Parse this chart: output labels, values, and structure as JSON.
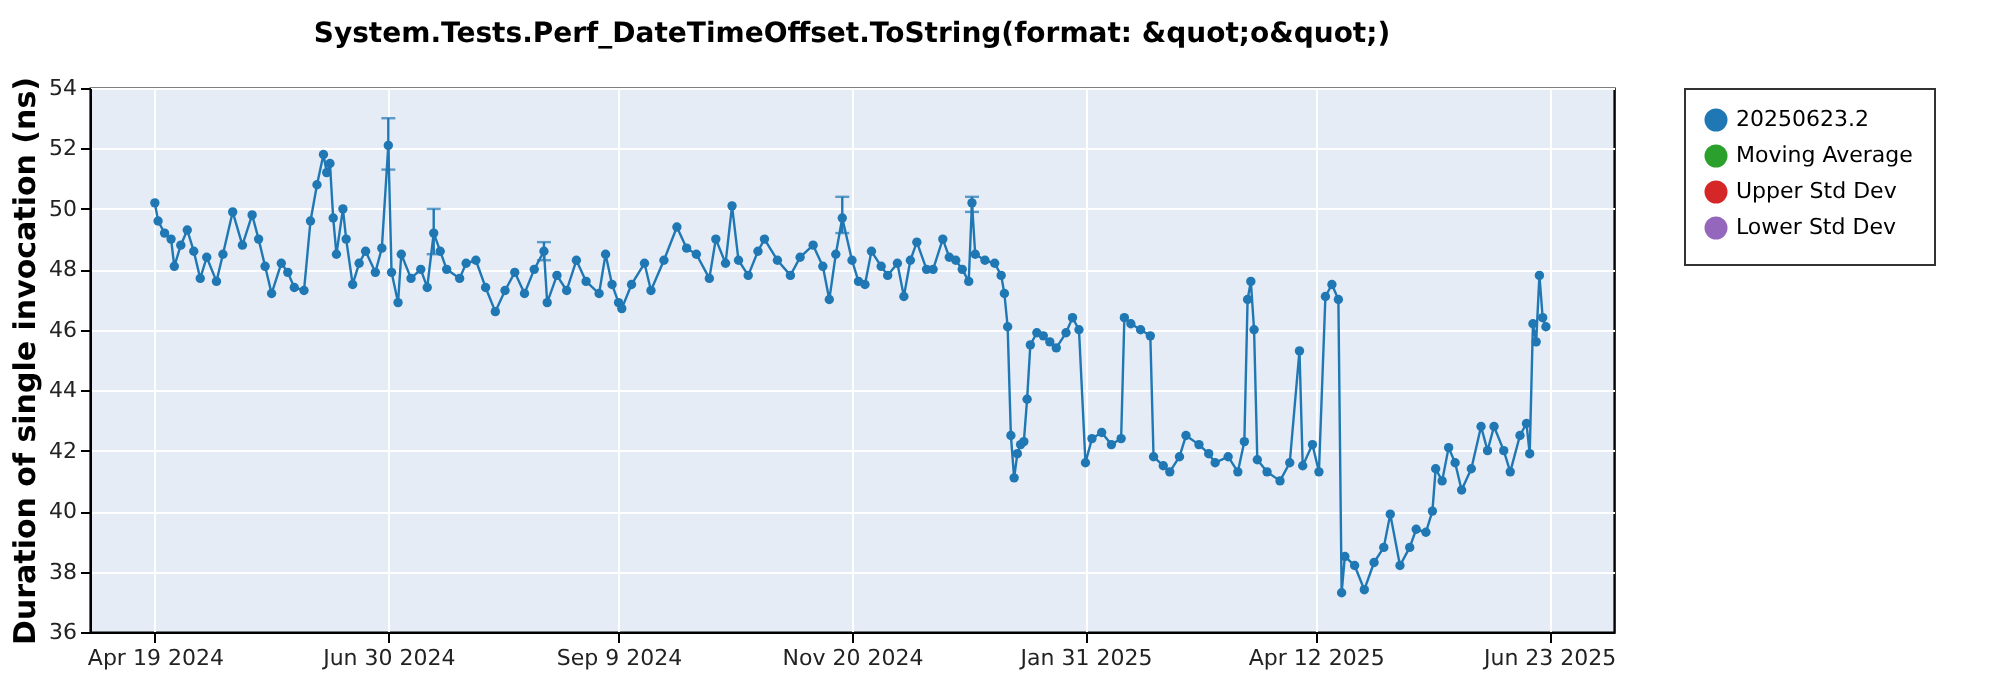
{
  "chart_data": {
    "type": "line",
    "title": "System.Tests.Perf_DateTimeOffset.ToString(format: &quot;o&quot;)",
    "ylabel": "Duration of single invocation (ns)",
    "xlim": [
      "2024-03-30",
      "2025-07-13"
    ],
    "xticks": [
      {
        "value": "2024-04-19",
        "label": "Apr 19 2024"
      },
      {
        "value": "2024-06-30",
        "label": "Jun 30 2024"
      },
      {
        "value": "2024-09-09",
        "label": "Sep 9 2024"
      },
      {
        "value": "2024-11-20",
        "label": "Nov 20 2024"
      },
      {
        "value": "2025-01-31",
        "label": "Jan 31 2025"
      },
      {
        "value": "2025-04-12",
        "label": "Apr 12 2025"
      },
      {
        "value": "2025-06-23",
        "label": "Jun 23 2025"
      }
    ],
    "ylim": [
      36,
      54
    ],
    "yticks": [
      36,
      38,
      40,
      42,
      44,
      46,
      48,
      50,
      52,
      54
    ],
    "grid": true,
    "legend": "right",
    "marker": "circle",
    "line_style": "solid",
    "x": [
      "2024-04-19",
      "2024-04-20",
      "2024-04-22",
      "2024-04-24",
      "2024-04-25",
      "2024-04-27",
      "2024-04-29",
      "2024-05-01",
      "2024-05-03",
      "2024-05-05",
      "2024-05-08",
      "2024-05-10",
      "2024-05-13",
      "2024-05-16",
      "2024-05-19",
      "2024-05-21",
      "2024-05-23",
      "2024-05-25",
      "2024-05-28",
      "2024-05-30",
      "2024-06-01",
      "2024-06-04",
      "2024-06-06",
      "2024-06-08",
      "2024-06-10",
      "2024-06-11",
      "2024-06-12",
      "2024-06-13",
      "2024-06-14",
      "2024-06-16",
      "2024-06-17",
      "2024-06-19",
      "2024-06-21",
      "2024-06-23",
      "2024-06-26",
      "2024-06-28",
      "2024-06-30",
      "2024-07-01",
      "2024-07-03",
      "2024-07-04",
      "2024-07-07",
      "2024-07-10",
      "2024-07-12",
      "2024-07-14",
      "2024-07-16",
      "2024-07-18",
      "2024-07-22",
      "2024-07-24",
      "2024-07-27",
      "2024-07-30",
      "2024-08-02",
      "2024-08-05",
      "2024-08-08",
      "2024-08-11",
      "2024-08-14",
      "2024-08-17",
      "2024-08-18",
      "2024-08-21",
      "2024-08-24",
      "2024-08-27",
      "2024-08-30",
      "2024-09-03",
      "2024-09-05",
      "2024-09-07",
      "2024-09-09",
      "2024-09-10",
      "2024-09-13",
      "2024-09-17",
      "2024-09-19",
      "2024-09-23",
      "2024-09-27",
      "2024-09-30",
      "2024-10-03",
      "2024-10-07",
      "2024-10-09",
      "2024-10-12",
      "2024-10-14",
      "2024-10-16",
      "2024-10-19",
      "2024-10-22",
      "2024-10-24",
      "2024-10-28",
      "2024-11-01",
      "2024-11-04",
      "2024-11-08",
      "2024-11-11",
      "2024-11-13",
      "2024-11-15",
      "2024-11-17",
      "2024-11-20",
      "2024-11-22",
      "2024-11-24",
      "2024-11-26",
      "2024-11-29",
      "2024-12-01",
      "2024-12-04",
      "2024-12-06",
      "2024-12-08",
      "2024-12-10",
      "2024-12-13",
      "2024-12-15",
      "2024-12-18",
      "2024-12-20",
      "2024-12-22",
      "2024-12-24",
      "2024-12-26",
      "2024-12-27",
      "2024-12-28",
      "2024-12-31",
      "2025-01-03",
      "2025-01-05",
      "2025-01-06",
      "2025-01-07",
      "2025-01-08",
      "2025-01-09",
      "2025-01-10",
      "2025-01-11",
      "2025-01-12",
      "2025-01-13",
      "2025-01-14",
      "2025-01-16",
      "2025-01-18",
      "2025-01-20",
      "2025-01-22",
      "2025-01-25",
      "2025-01-27",
      "2025-01-29",
      "2025-01-31",
      "2025-02-02",
      "2025-02-05",
      "2025-02-08",
      "2025-02-11",
      "2025-02-12",
      "2025-02-14",
      "2025-02-17",
      "2025-02-20",
      "2025-02-21",
      "2025-02-24",
      "2025-02-26",
      "2025-03-01",
      "2025-03-03",
      "2025-03-07",
      "2025-03-10",
      "2025-03-12",
      "2025-03-16",
      "2025-03-19",
      "2025-03-21",
      "2025-03-22",
      "2025-03-23",
      "2025-03-24",
      "2025-03-25",
      "2025-03-28",
      "2025-04-01",
      "2025-04-04",
      "2025-04-07",
      "2025-04-08",
      "2025-04-11",
      "2025-04-13",
      "2025-04-15",
      "2025-04-17",
      "2025-04-19",
      "2025-04-20",
      "2025-04-21",
      "2025-04-24",
      "2025-04-27",
      "2025-04-30",
      "2025-05-03",
      "2025-05-05",
      "2025-05-08",
      "2025-05-11",
      "2025-05-13",
      "2025-05-16",
      "2025-05-18",
      "2025-05-19",
      "2025-05-21",
      "2025-05-23",
      "2025-05-25",
      "2025-05-27",
      "2025-05-30",
      "2025-06-02",
      "2025-06-04",
      "2025-06-06",
      "2025-06-09",
      "2025-06-11",
      "2025-06-14",
      "2025-06-16",
      "2025-06-17",
      "2025-06-18",
      "2025-06-19",
      "2025-06-20",
      "2025-06-21",
      "2025-06-22"
    ],
    "series": [
      {
        "name": "20250623.2",
        "color": "#1f77b4",
        "values": [
          50.2,
          49.6,
          49.2,
          49.0,
          48.1,
          48.8,
          49.3,
          48.6,
          47.7,
          48.4,
          47.6,
          48.5,
          49.9,
          48.8,
          49.8,
          49.0,
          48.1,
          47.2,
          48.2,
          47.9,
          47.4,
          47.3,
          49.6,
          50.8,
          51.8,
          51.2,
          51.5,
          49.7,
          48.5,
          50.0,
          49.0,
          47.5,
          48.2,
          48.6,
          47.9,
          48.7,
          52.1,
          47.9,
          46.9,
          48.5,
          47.7,
          48.0,
          47.4,
          49.2,
          48.6,
          48.0,
          47.7,
          48.2,
          48.3,
          47.4,
          46.6,
          47.3,
          47.9,
          47.2,
          48.0,
          48.6,
          46.9,
          47.8,
          47.3,
          48.3,
          47.6,
          47.2,
          48.5,
          47.5,
          46.9,
          46.7,
          47.5,
          48.2,
          47.3,
          48.3,
          49.4,
          48.7,
          48.5,
          47.7,
          49.0,
          48.2,
          50.1,
          48.3,
          47.8,
          48.6,
          49.0,
          48.3,
          47.8,
          48.4,
          48.8,
          48.1,
          47.0,
          48.5,
          49.7,
          48.3,
          47.6,
          47.5,
          48.6,
          48.1,
          47.8,
          48.2,
          47.1,
          48.3,
          48.9,
          48.0,
          48.0,
          49.0,
          48.4,
          48.3,
          48.0,
          47.6,
          50.2,
          48.5,
          48.3,
          48.2,
          47.8,
          47.2,
          46.1,
          42.5,
          41.1,
          41.9,
          42.2,
          42.3,
          43.7,
          45.5,
          45.9,
          45.8,
          45.6,
          45.4,
          45.9,
          46.4,
          46.0,
          41.6,
          42.4,
          42.6,
          42.2,
          42.4,
          46.4,
          46.2,
          46.0,
          45.8,
          41.8,
          41.5,
          41.3,
          41.8,
          42.5,
          42.2,
          41.9,
          41.6,
          41.8,
          41.3,
          42.3,
          47.0,
          47.6,
          46.0,
          41.7,
          41.3,
          41.0,
          41.6,
          45.3,
          41.5,
          42.2,
          41.3,
          47.1,
          47.5,
          47.0,
          37.3,
          38.5,
          38.2,
          37.4,
          38.3,
          38.8,
          39.9,
          38.2,
          38.8,
          39.4,
          39.3,
          40.0,
          41.4,
          41.0,
          42.1,
          41.6,
          40.7,
          41.4,
          42.8,
          42.0,
          42.8,
          42.0,
          41.3,
          42.5,
          42.9,
          41.9,
          46.2,
          45.6,
          47.8,
          46.4,
          46.1
        ],
        "errors": [
          null,
          null,
          null,
          null,
          null,
          null,
          null,
          null,
          null,
          null,
          null,
          null,
          null,
          null,
          null,
          null,
          null,
          null,
          null,
          null,
          null,
          null,
          null,
          null,
          null,
          null,
          null,
          null,
          null,
          null,
          null,
          null,
          null,
          null,
          null,
          null,
          [
            51.3,
            53.0
          ],
          null,
          null,
          null,
          null,
          null,
          null,
          [
            48.5,
            50.0
          ],
          null,
          null,
          null,
          null,
          null,
          null,
          null,
          null,
          null,
          null,
          null,
          [
            48.3,
            48.9
          ],
          null,
          null,
          null,
          null,
          null,
          null,
          null,
          null,
          null,
          null,
          null,
          null,
          null,
          null,
          null,
          null,
          null,
          null,
          null,
          null,
          null,
          null,
          null,
          null,
          null,
          null,
          null,
          null,
          null,
          null,
          null,
          null,
          [
            49.2,
            50.4
          ],
          null,
          null,
          null,
          null,
          null,
          null,
          null,
          null,
          null,
          null,
          null,
          null,
          null,
          null,
          null,
          null,
          null,
          [
            49.9,
            50.4
          ],
          null,
          null,
          null,
          null,
          null,
          null,
          null,
          null,
          null,
          null,
          null,
          null,
          null,
          null,
          null,
          null,
          null,
          null,
          null,
          null,
          null,
          null,
          null,
          null,
          null,
          null,
          null,
          null,
          null,
          null,
          null,
          null,
          null,
          null,
          null,
          null,
          null,
          null,
          null,
          null,
          null,
          null,
          null,
          null,
          null,
          null,
          null,
          null,
          null,
          null,
          null,
          null,
          null,
          null,
          null,
          null,
          null,
          null,
          null,
          null,
          null,
          null,
          null,
          null,
          null,
          null,
          null,
          null,
          null,
          null,
          null,
          null,
          null,
          null,
          null,
          null,
          null,
          null,
          null,
          null,
          null,
          null,
          null,
          null,
          null
        ]
      },
      {
        "name": "Moving Average",
        "color": "#2ca02c",
        "values": [
          null,
          null,
          null,
          null,
          null,
          null,
          null,
          null,
          null,
          null,
          null,
          null,
          null,
          null,
          null,
          null,
          null,
          null,
          null,
          null,
          null,
          null,
          null,
          null,
          null,
          null,
          null,
          null,
          null,
          null,
          null,
          null,
          null,
          null,
          null,
          null,
          null,
          null,
          null,
          null,
          null,
          null,
          null,
          null,
          null,
          null,
          null,
          null,
          null,
          null,
          null,
          null,
          null,
          null,
          null,
          null,
          null,
          null,
          null,
          null,
          null,
          null,
          null,
          null,
          null,
          null,
          null,
          null,
          null,
          null,
          null,
          null,
          null,
          null,
          null,
          null,
          null,
          null,
          null,
          null,
          null,
          null,
          null,
          null,
          null,
          null,
          null,
          null,
          null,
          null,
          null,
          null,
          null,
          null,
          null,
          null,
          null,
          null,
          null,
          null,
          null,
          null,
          null,
          null,
          null,
          null,
          null,
          null,
          null,
          null,
          null,
          null,
          null,
          null,
          null,
          null,
          null,
          null,
          null,
          null,
          null,
          null,
          null,
          null,
          null,
          null,
          null,
          null,
          null,
          null,
          null,
          null,
          null,
          null,
          null,
          null,
          null,
          null,
          null,
          null,
          null,
          null,
          null,
          null,
          null,
          null,
          null,
          null,
          null,
          null,
          null,
          null,
          null,
          null,
          null,
          null,
          null,
          null,
          null,
          null,
          null,
          null,
          null,
          null,
          null,
          null,
          null,
          null,
          null,
          null,
          null,
          null,
          null,
          null,
          null,
          null,
          null,
          null,
          null,
          null,
          null,
          null,
          null,
          null,
          null,
          null,
          null,
          null,
          null,
          null,
          null,
          null
        ]
      },
      {
        "name": "Upper Std Dev",
        "color": "#d62728",
        "values": [
          null,
          null,
          null,
          null,
          null,
          null,
          null,
          null,
          null,
          null,
          null,
          null,
          null,
          null,
          null,
          null,
          null,
          null,
          null,
          null,
          null,
          null,
          null,
          null,
          null,
          null,
          null,
          null,
          null,
          null,
          null,
          null,
          null,
          null,
          null,
          null,
          null,
          null,
          null,
          null,
          null,
          null,
          null,
          null,
          null,
          null,
          null,
          null,
          null,
          null,
          null,
          null,
          null,
          null,
          null,
          null,
          null,
          null,
          null,
          null,
          null,
          null,
          null,
          null,
          null,
          null,
          null,
          null,
          null,
          null,
          null,
          null,
          null,
          null,
          null,
          null,
          null,
          null,
          null,
          null,
          null,
          null,
          null,
          null,
          null,
          null,
          null,
          null,
          null,
          null,
          null,
          null,
          null,
          null,
          null,
          null,
          null,
          null,
          null,
          null,
          null,
          null,
          null,
          null,
          null,
          null,
          null,
          null,
          null,
          null,
          null,
          null,
          null,
          null,
          null,
          null,
          null,
          null,
          null,
          null,
          null,
          null,
          null,
          null,
          null,
          null,
          null,
          null,
          null,
          null,
          null,
          null,
          null,
          null,
          null,
          null,
          null,
          null,
          null,
          null,
          null,
          null,
          null,
          null,
          null,
          null,
          null,
          null,
          null,
          null,
          null,
          null,
          null,
          null,
          null,
          null,
          null,
          null,
          null,
          null,
          null,
          null,
          null,
          null,
          null,
          null,
          null,
          null,
          null,
          null,
          null,
          null,
          null,
          null,
          null,
          null,
          null,
          null,
          null,
          null,
          null,
          null,
          null,
          null,
          null,
          null,
          null,
          null,
          null,
          null,
          null,
          null
        ]
      },
      {
        "name": "Lower Std Dev",
        "color": "#9467bd",
        "values": [
          null,
          null,
          null,
          null,
          null,
          null,
          null,
          null,
          null,
          null,
          null,
          null,
          null,
          null,
          null,
          null,
          null,
          null,
          null,
          null,
          null,
          null,
          null,
          null,
          null,
          null,
          null,
          null,
          null,
          null,
          null,
          null,
          null,
          null,
          null,
          null,
          null,
          null,
          null,
          null,
          null,
          null,
          null,
          null,
          null,
          null,
          null,
          null,
          null,
          null,
          null,
          null,
          null,
          null,
          null,
          null,
          null,
          null,
          null,
          null,
          null,
          null,
          null,
          null,
          null,
          null,
          null,
          null,
          null,
          null,
          null,
          null,
          null,
          null,
          null,
          null,
          null,
          null,
          null,
          null,
          null,
          null,
          null,
          null,
          null,
          null,
          null,
          null,
          null,
          null,
          null,
          null,
          null,
          null,
          null,
          null,
          null,
          null,
          null,
          null,
          null,
          null,
          null,
          null,
          null,
          null,
          null,
          null,
          null,
          null,
          null,
          null,
          null,
          null,
          null,
          null,
          null,
          null,
          null,
          null,
          null,
          null,
          null,
          null,
          null,
          null,
          null,
          null,
          null,
          null,
          null,
          null,
          null,
          null,
          null,
          null,
          null,
          null,
          null,
          null,
          null,
          null,
          null,
          null,
          null,
          null,
          null,
          null,
          null,
          null,
          null,
          null,
          null,
          null,
          null,
          null,
          null,
          null,
          null,
          null,
          null,
          null,
          null,
          null,
          null,
          null,
          null,
          null,
          null,
          null,
          null,
          null,
          null,
          null,
          null,
          null,
          null,
          null,
          null,
          null,
          null,
          null,
          null,
          null,
          null,
          null,
          null,
          null,
          null,
          null,
          null,
          null
        ]
      }
    ]
  }
}
